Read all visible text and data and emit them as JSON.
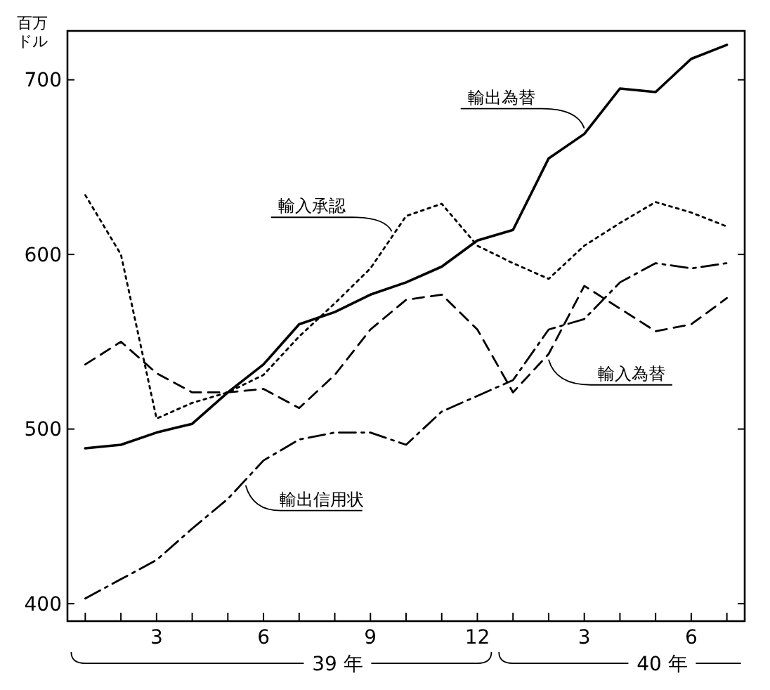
{
  "chart_data": {
    "type": "line",
    "ylabel": "百万ドル",
    "categories": [
      null,
      null,
      "3",
      null,
      null,
      "6",
      null,
      null,
      "9",
      null,
      null,
      "12",
      null,
      null,
      "3",
      null,
      null,
      "6",
      null
    ],
    "ylim": [
      390,
      728
    ],
    "yticks": [
      400,
      500,
      600,
      700
    ],
    "grid": false,
    "series": [
      {
        "name": "輸出為替",
        "color": "#000000",
        "line_style": "solid",
        "values": [
          489,
          491,
          498,
          503,
          521,
          537,
          560,
          567,
          577,
          584,
          593,
          608,
          614,
          655,
          669,
          695,
          693,
          712,
          720
        ]
      },
      {
        "name": "輸入承認",
        "color": "#000000",
        "line_style": "dotted",
        "values": [
          634,
          600,
          506,
          515,
          521,
          531,
          553,
          572,
          592,
          622,
          629,
          605,
          595,
          586,
          605,
          618,
          630,
          624,
          616
        ]
      },
      {
        "name": "輸入為替",
        "color": "#000000",
        "line_style": "dashed",
        "values": [
          537,
          550,
          532,
          521,
          521,
          523,
          512,
          531,
          557,
          574,
          577,
          557,
          521,
          543,
          582,
          569,
          556,
          560,
          575
        ]
      },
      {
        "name": "輸出信用状",
        "color": "#000000",
        "line_style": "dashdot",
        "values": [
          403,
          414,
          425,
          443,
          460,
          482,
          494,
          498,
          498,
          491,
          510,
          519,
          528,
          557,
          563,
          584,
          595,
          592,
          595
        ]
      }
    ],
    "annotations": [
      "39 年",
      "40 年"
    ]
  }
}
